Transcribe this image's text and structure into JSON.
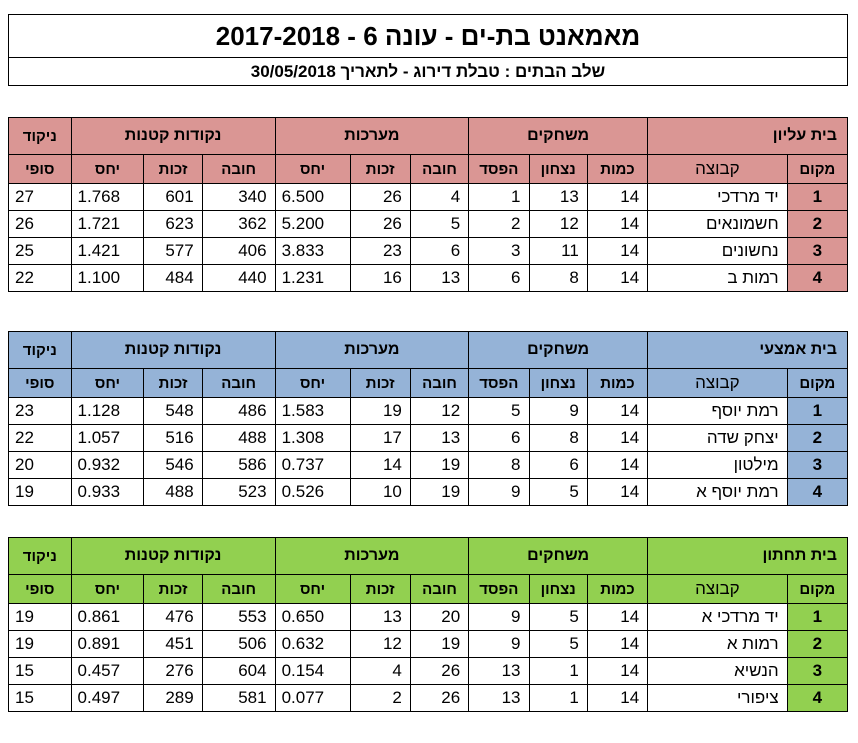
{
  "header": {
    "title": "מאמאנט בת-ים   -   עונה 6   -   2017-2018",
    "subtitle": "שלב הבתים   :   טבלת דירוג - לתאריך 30/05/2018"
  },
  "columns": {
    "rank": "מקום",
    "team": "קבוצה",
    "games_group": "משחקים",
    "games_played": "כמות",
    "wins": "נצחון",
    "losses": "הפסד",
    "sets_group": "מערכות",
    "minus": "חובה",
    "plus": "זכות",
    "ratio": "יחס",
    "points_group": "נקודות קטנות",
    "final_top": "ניקוד",
    "final_bottom": "סופי"
  },
  "houses": [
    {
      "name": "בית עליון",
      "color": "#DA9694",
      "rows": [
        {
          "rank": "1",
          "team": "יד מרדכי",
          "played": "14",
          "wins": "13",
          "losses": "1",
          "sets_minus": "4",
          "sets_plus": "26",
          "sets_ratio": "6.500",
          "pts_minus": "340",
          "pts_plus": "601",
          "pts_ratio": "1.768",
          "final": "27"
        },
        {
          "rank": "2",
          "team": "חשמונאים",
          "played": "14",
          "wins": "12",
          "losses": "2",
          "sets_minus": "5",
          "sets_plus": "26",
          "sets_ratio": "5.200",
          "pts_minus": "362",
          "pts_plus": "623",
          "pts_ratio": "1.721",
          "final": "26"
        },
        {
          "rank": "3",
          "team": "נחשונים",
          "played": "14",
          "wins": "11",
          "losses": "3",
          "sets_minus": "6",
          "sets_plus": "23",
          "sets_ratio": "3.833",
          "pts_minus": "406",
          "pts_plus": "577",
          "pts_ratio": "1.421",
          "final": "25"
        },
        {
          "rank": "4",
          "team": "רמות ב",
          "played": "14",
          "wins": "8",
          "losses": "6",
          "sets_minus": "13",
          "sets_plus": "16",
          "sets_ratio": "1.231",
          "pts_minus": "440",
          "pts_plus": "484",
          "pts_ratio": "1.100",
          "final": "22"
        }
      ]
    },
    {
      "name": "בית אמצעי",
      "color": "#95B3D7",
      "rows": [
        {
          "rank": "1",
          "team": "רמת יוסף",
          "played": "14",
          "wins": "9",
          "losses": "5",
          "sets_minus": "12",
          "sets_plus": "19",
          "sets_ratio": "1.583",
          "pts_minus": "486",
          "pts_plus": "548",
          "pts_ratio": "1.128",
          "final": "23"
        },
        {
          "rank": "2",
          "team": "יצחק שדה",
          "played": "14",
          "wins": "8",
          "losses": "6",
          "sets_minus": "13",
          "sets_plus": "17",
          "sets_ratio": "1.308",
          "pts_minus": "488",
          "pts_plus": "516",
          "pts_ratio": "1.057",
          "final": "22"
        },
        {
          "rank": "3",
          "team": "מילטון",
          "played": "14",
          "wins": "6",
          "losses": "8",
          "sets_minus": "19",
          "sets_plus": "14",
          "sets_ratio": "0.737",
          "pts_minus": "586",
          "pts_plus": "546",
          "pts_ratio": "0.932",
          "final": "20"
        },
        {
          "rank": "4",
          "team": "רמת יוסף א",
          "played": "14",
          "wins": "5",
          "losses": "9",
          "sets_minus": "19",
          "sets_plus": "10",
          "sets_ratio": "0.526",
          "pts_minus": "523",
          "pts_plus": "488",
          "pts_ratio": "0.933",
          "final": "19"
        }
      ]
    },
    {
      "name": "בית תחתון",
      "color": "#92D050",
      "rows": [
        {
          "rank": "1",
          "team": "יד מרדכי א",
          "played": "14",
          "wins": "5",
          "losses": "9",
          "sets_minus": "20",
          "sets_plus": "13",
          "sets_ratio": "0.650",
          "pts_minus": "553",
          "pts_plus": "476",
          "pts_ratio": "0.861",
          "final": "19"
        },
        {
          "rank": "2",
          "team": "רמות א",
          "played": "14",
          "wins": "5",
          "losses": "9",
          "sets_minus": "19",
          "sets_plus": "12",
          "sets_ratio": "0.632",
          "pts_minus": "506",
          "pts_plus": "451",
          "pts_ratio": "0.891",
          "final": "19"
        },
        {
          "rank": "3",
          "team": "הנשיא",
          "played": "14",
          "wins": "1",
          "losses": "13",
          "sets_minus": "26",
          "sets_plus": "4",
          "sets_ratio": "0.154",
          "pts_minus": "604",
          "pts_plus": "276",
          "pts_ratio": "0.457",
          "final": "15"
        },
        {
          "rank": "4",
          "team": "ציפורי",
          "played": "14",
          "wins": "1",
          "losses": "13",
          "sets_minus": "26",
          "sets_plus": "2",
          "sets_ratio": "0.077",
          "pts_minus": "581",
          "pts_plus": "289",
          "pts_ratio": "0.497",
          "final": "15"
        }
      ]
    }
  ]
}
